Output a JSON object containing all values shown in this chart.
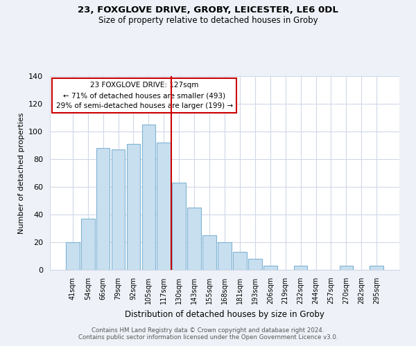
{
  "title1": "23, FOXGLOVE DRIVE, GROBY, LEICESTER, LE6 0DL",
  "title2": "Size of property relative to detached houses in Groby",
  "xlabel": "Distribution of detached houses by size in Groby",
  "ylabel": "Number of detached properties",
  "bar_labels": [
    "41sqm",
    "54sqm",
    "66sqm",
    "79sqm",
    "92sqm",
    "105sqm",
    "117sqm",
    "130sqm",
    "143sqm",
    "155sqm",
    "168sqm",
    "181sqm",
    "193sqm",
    "206sqm",
    "219sqm",
    "232sqm",
    "244sqm",
    "257sqm",
    "270sqm",
    "282sqm",
    "295sqm"
  ],
  "bar_values": [
    20,
    37,
    88,
    87,
    91,
    105,
    92,
    63,
    45,
    25,
    20,
    13,
    8,
    3,
    0,
    3,
    0,
    0,
    3,
    0,
    3
  ],
  "bar_color": "#c8dff0",
  "bar_edge_color": "#7fb3d3",
  "highlight_color": "#cc0000",
  "ylim": [
    0,
    140
  ],
  "yticks": [
    0,
    20,
    40,
    60,
    80,
    100,
    120,
    140
  ],
  "annotation_title": "23 FOXGLOVE DRIVE: 127sqm",
  "annotation_line1": "← 71% of detached houses are smaller (493)",
  "annotation_line2": "29% of semi-detached houses are larger (199) →",
  "box_color": "#ffffff",
  "box_edge_color": "#cc0000",
  "footer1": "Contains HM Land Registry data © Crown copyright and database right 2024.",
  "footer2": "Contains public sector information licensed under the Open Government Licence v3.0.",
  "background_color": "#eef2f8",
  "plot_background_color": "#ffffff",
  "grid_color": "#d0d8e8"
}
